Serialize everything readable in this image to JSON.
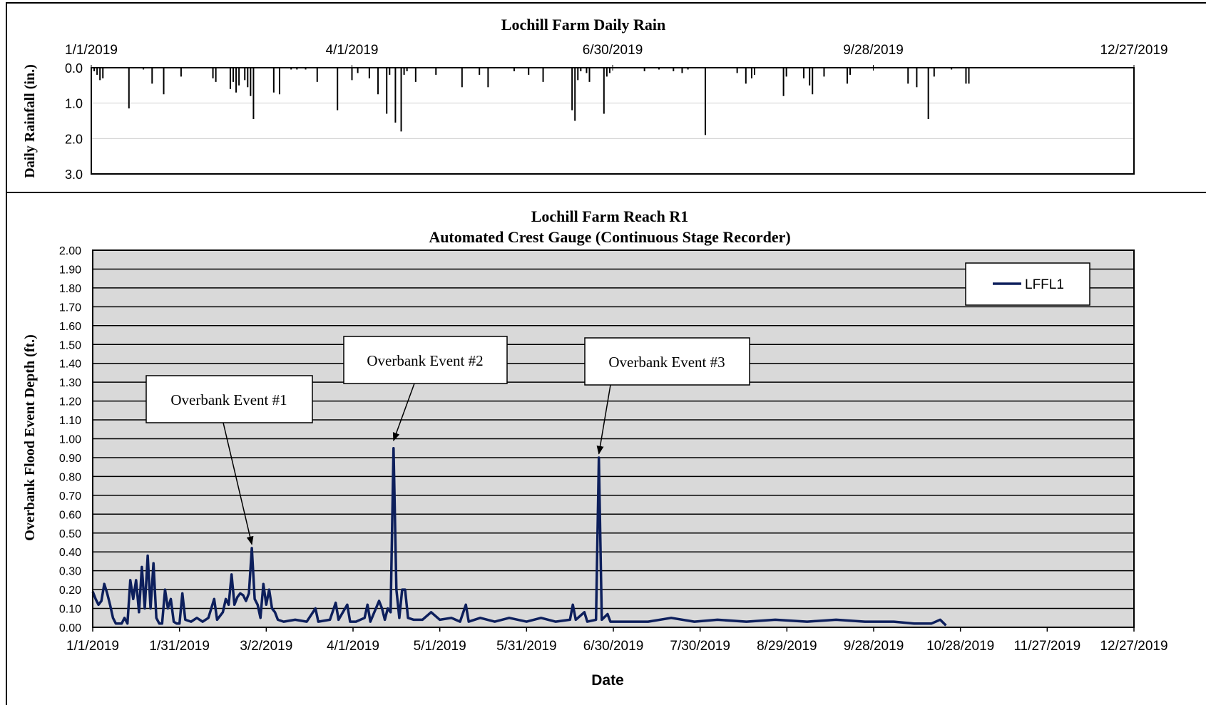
{
  "chart_data": [
    {
      "type": "bar",
      "title": "Lochill Farm Daily Rain",
      "ylabel": "Daily Rainfall (in.)",
      "y_inverted": true,
      "ylim": [
        0,
        3
      ],
      "yticks": [
        "0.0",
        "1.0",
        "2.0",
        "3.0"
      ],
      "xlim": [
        "2019-01-01",
        "2019-12-27"
      ],
      "xtick_dates": [
        "2019-01-01",
        "2019-04-01",
        "2019-06-30",
        "2019-09-28",
        "2019-12-27"
      ],
      "xticks": [
        "1/1/2019",
        "4/1/2019",
        "6/30/2019",
        "9/28/2019",
        "12/27/2019"
      ],
      "grid": true,
      "bar_color": "#000000",
      "points": [
        [
          "2019-01-02",
          0.1
        ],
        [
          "2019-01-03",
          0.2
        ],
        [
          "2019-01-04",
          0.35
        ],
        [
          "2019-01-05",
          0.3
        ],
        [
          "2019-01-14",
          1.15
        ],
        [
          "2019-01-19",
          0.05
        ],
        [
          "2019-01-22",
          0.45
        ],
        [
          "2019-01-26",
          0.75
        ],
        [
          "2019-02-01",
          0.25
        ],
        [
          "2019-02-12",
          0.3
        ],
        [
          "2019-02-13",
          0.4
        ],
        [
          "2019-02-18",
          0.6
        ],
        [
          "2019-02-19",
          0.4
        ],
        [
          "2019-02-20",
          0.7
        ],
        [
          "2019-02-21",
          0.5
        ],
        [
          "2019-02-23",
          0.35
        ],
        [
          "2019-02-24",
          0.55
        ],
        [
          "2019-02-25",
          0.8
        ],
        [
          "2019-02-26",
          1.45
        ],
        [
          "2019-03-05",
          0.7
        ],
        [
          "2019-03-07",
          0.75
        ],
        [
          "2019-03-11",
          0.05
        ],
        [
          "2019-03-13",
          0.05
        ],
        [
          "2019-03-16",
          0.05
        ],
        [
          "2019-03-20",
          0.4
        ],
        [
          "2019-03-27",
          1.2
        ],
        [
          "2019-04-01",
          0.35
        ],
        [
          "2019-04-03",
          0.15
        ],
        [
          "2019-04-07",
          0.3
        ],
        [
          "2019-04-10",
          0.75
        ],
        [
          "2019-04-13",
          1.3
        ],
        [
          "2019-04-14",
          0.2
        ],
        [
          "2019-04-16",
          1.55
        ],
        [
          "2019-04-18",
          1.8
        ],
        [
          "2019-04-19",
          0.2
        ],
        [
          "2019-04-20",
          0.1
        ],
        [
          "2019-04-23",
          0.4
        ],
        [
          "2019-04-30",
          0.2
        ],
        [
          "2019-05-09",
          0.55
        ],
        [
          "2019-05-15",
          0.2
        ],
        [
          "2019-05-18",
          0.55
        ],
        [
          "2019-05-27",
          0.1
        ],
        [
          "2019-06-01",
          0.2
        ],
        [
          "2019-06-06",
          0.4
        ],
        [
          "2019-06-16",
          1.2
        ],
        [
          "2019-06-17",
          1.5
        ],
        [
          "2019-06-18",
          0.35
        ],
        [
          "2019-06-19",
          0.1
        ],
        [
          "2019-06-21",
          0.15
        ],
        [
          "2019-06-22",
          0.4
        ],
        [
          "2019-06-27",
          1.3
        ],
        [
          "2019-06-28",
          0.25
        ],
        [
          "2019-06-29",
          0.15
        ],
        [
          "2019-07-11",
          0.1
        ],
        [
          "2019-07-16",
          0.05
        ],
        [
          "2019-07-21",
          0.1
        ],
        [
          "2019-07-24",
          0.15
        ],
        [
          "2019-07-26",
          0.05
        ],
        [
          "2019-08-01",
          1.9
        ],
        [
          "2019-08-12",
          0.15
        ],
        [
          "2019-08-15",
          0.45
        ],
        [
          "2019-08-17",
          0.3
        ],
        [
          "2019-08-18",
          0.2
        ],
        [
          "2019-08-28",
          0.8
        ],
        [
          "2019-08-29",
          0.25
        ],
        [
          "2019-09-04",
          0.3
        ],
        [
          "2019-09-06",
          0.5
        ],
        [
          "2019-09-07",
          0.75
        ],
        [
          "2019-09-11",
          0.25
        ],
        [
          "2019-09-19",
          0.45
        ],
        [
          "2019-09-20",
          0.2
        ],
        [
          "2019-10-10",
          0.45
        ],
        [
          "2019-10-13",
          0.55
        ],
        [
          "2019-10-17",
          1.45
        ],
        [
          "2019-10-19",
          0.25
        ],
        [
          "2019-10-25",
          0.05
        ],
        [
          "2019-10-30",
          0.45
        ],
        [
          "2019-10-31",
          0.45
        ]
      ]
    },
    {
      "type": "line",
      "title": "Lochill Farm Reach R1",
      "subtitle": "Automated Crest Gauge (Continuous Stage Recorder)",
      "xlabel": "Date",
      "ylabel": "Overbank Flood Event Depth (ft.)",
      "ylim": [
        0,
        2
      ],
      "yticks": [
        "0.00",
        "0.10",
        "0.20",
        "0.30",
        "0.40",
        "0.50",
        "0.60",
        "0.70",
        "0.80",
        "0.90",
        "1.00",
        "1.10",
        "1.20",
        "1.30",
        "1.40",
        "1.50",
        "1.60",
        "1.70",
        "1.80",
        "1.90",
        "2.00"
      ],
      "xlim": [
        "2019-01-01",
        "2019-12-27"
      ],
      "xtick_dates": [
        "2019-01-01",
        "2019-01-31",
        "2019-03-02",
        "2019-04-01",
        "2019-05-01",
        "2019-05-31",
        "2019-06-30",
        "2019-07-30",
        "2019-08-29",
        "2019-09-28",
        "2019-10-28",
        "2019-11-27",
        "2019-12-27"
      ],
      "xticks": [
        "1/1/2019",
        "1/31/2019",
        "3/2/2019",
        "4/1/2019",
        "5/1/2019",
        "5/31/2019",
        "6/30/2019",
        "7/30/2019",
        "8/29/2019",
        "9/28/2019",
        "10/28/2019",
        "11/27/2019",
        "12/27/2019"
      ],
      "grid": true,
      "plot_background": "#d9d9d9",
      "legend_placement": "top-right",
      "series": [
        {
          "name": "LFFL1",
          "color": "#0d1f5c",
          "points": [
            [
              "2019-01-01",
              0.19
            ],
            [
              "2019-01-02",
              0.15
            ],
            [
              "2019-01-03",
              0.12
            ],
            [
              "2019-01-04",
              0.14
            ],
            [
              "2019-01-05",
              0.23
            ],
            [
              "2019-01-06",
              0.18
            ],
            [
              "2019-01-07",
              0.12
            ],
            [
              "2019-01-08",
              0.05
            ],
            [
              "2019-01-09",
              0.02
            ],
            [
              "2019-01-11",
              0.02
            ],
            [
              "2019-01-12",
              0.05
            ],
            [
              "2019-01-13",
              0.02
            ],
            [
              "2019-01-14",
              0.25
            ],
            [
              "2019-01-15",
              0.15
            ],
            [
              "2019-01-16",
              0.25
            ],
            [
              "2019-01-17",
              0.08
            ],
            [
              "2019-01-18",
              0.32
            ],
            [
              "2019-01-19",
              0.1
            ],
            [
              "2019-01-20",
              0.38
            ],
            [
              "2019-01-21",
              0.1
            ],
            [
              "2019-01-22",
              0.34
            ],
            [
              "2019-01-23",
              0.05
            ],
            [
              "2019-01-24",
              0.02
            ],
            [
              "2019-01-25",
              0.02
            ],
            [
              "2019-01-26",
              0.2
            ],
            [
              "2019-01-27",
              0.1
            ],
            [
              "2019-01-28",
              0.15
            ],
            [
              "2019-01-29",
              0.03
            ],
            [
              "2019-01-30",
              0.02
            ],
            [
              "2019-01-31",
              0.02
            ],
            [
              "2019-02-01",
              0.18
            ],
            [
              "2019-02-02",
              0.04
            ],
            [
              "2019-02-04",
              0.03
            ],
            [
              "2019-02-06",
              0.05
            ],
            [
              "2019-02-08",
              0.03
            ],
            [
              "2019-02-10",
              0.05
            ],
            [
              "2019-02-12",
              0.15
            ],
            [
              "2019-02-13",
              0.04
            ],
            [
              "2019-02-15",
              0.08
            ],
            [
              "2019-02-16",
              0.15
            ],
            [
              "2019-02-17",
              0.12
            ],
            [
              "2019-02-18",
              0.28
            ],
            [
              "2019-02-19",
              0.12
            ],
            [
              "2019-02-20",
              0.16
            ],
            [
              "2019-02-21",
              0.18
            ],
            [
              "2019-02-22",
              0.17
            ],
            [
              "2019-02-23",
              0.14
            ],
            [
              "2019-02-24",
              0.18
            ],
            [
              "2019-02-25",
              0.42
            ],
            [
              "2019-02-26",
              0.15
            ],
            [
              "2019-02-27",
              0.12
            ],
            [
              "2019-02-28",
              0.05
            ],
            [
              "2019-03-01",
              0.23
            ],
            [
              "2019-03-02",
              0.12
            ],
            [
              "2019-03-03",
              0.2
            ],
            [
              "2019-03-04",
              0.1
            ],
            [
              "2019-03-05",
              0.08
            ],
            [
              "2019-03-06",
              0.04
            ],
            [
              "2019-03-08",
              0.03
            ],
            [
              "2019-03-12",
              0.04
            ],
            [
              "2019-03-16",
              0.03
            ],
            [
              "2019-03-19",
              0.1
            ],
            [
              "2019-03-20",
              0.03
            ],
            [
              "2019-03-24",
              0.04
            ],
            [
              "2019-03-26",
              0.13
            ],
            [
              "2019-03-27",
              0.04
            ],
            [
              "2019-03-30",
              0.12
            ],
            [
              "2019-03-31",
              0.03
            ],
            [
              "2019-04-02",
              0.03
            ],
            [
              "2019-04-05",
              0.05
            ],
            [
              "2019-04-06",
              0.12
            ],
            [
              "2019-04-07",
              0.03
            ],
            [
              "2019-04-10",
              0.14
            ],
            [
              "2019-04-11",
              0.1
            ],
            [
              "2019-04-12",
              0.04
            ],
            [
              "2019-04-13",
              0.1
            ],
            [
              "2019-04-14",
              0.08
            ],
            [
              "2019-04-15",
              0.95
            ],
            [
              "2019-04-16",
              0.2
            ],
            [
              "2019-04-17",
              0.05
            ],
            [
              "2019-04-18",
              0.2
            ],
            [
              "2019-04-19",
              0.2
            ],
            [
              "2019-04-20",
              0.05
            ],
            [
              "2019-04-22",
              0.04
            ],
            [
              "2019-04-25",
              0.04
            ],
            [
              "2019-04-28",
              0.08
            ],
            [
              "2019-05-01",
              0.04
            ],
            [
              "2019-05-05",
              0.05
            ],
            [
              "2019-05-08",
              0.03
            ],
            [
              "2019-05-10",
              0.12
            ],
            [
              "2019-05-11",
              0.03
            ],
            [
              "2019-05-15",
              0.05
            ],
            [
              "2019-05-20",
              0.03
            ],
            [
              "2019-05-25",
              0.05
            ],
            [
              "2019-05-31",
              0.03
            ],
            [
              "2019-06-05",
              0.05
            ],
            [
              "2019-06-10",
              0.03
            ],
            [
              "2019-06-15",
              0.04
            ],
            [
              "2019-06-16",
              0.12
            ],
            [
              "2019-06-17",
              0.04
            ],
            [
              "2019-06-20",
              0.08
            ],
            [
              "2019-06-21",
              0.03
            ],
            [
              "2019-06-24",
              0.04
            ],
            [
              "2019-06-25",
              0.9
            ],
            [
              "2019-06-26",
              0.04
            ],
            [
              "2019-06-28",
              0.07
            ],
            [
              "2019-06-29",
              0.03
            ],
            [
              "2019-07-05",
              0.03
            ],
            [
              "2019-07-12",
              0.03
            ],
            [
              "2019-07-20",
              0.05
            ],
            [
              "2019-07-28",
              0.03
            ],
            [
              "2019-08-05",
              0.04
            ],
            [
              "2019-08-15",
              0.03
            ],
            [
              "2019-08-25",
              0.04
            ],
            [
              "2019-09-05",
              0.03
            ],
            [
              "2019-09-15",
              0.04
            ],
            [
              "2019-09-25",
              0.03
            ],
            [
              "2019-10-05",
              0.03
            ],
            [
              "2019-10-12",
              0.02
            ],
            [
              "2019-10-18",
              0.02
            ],
            [
              "2019-10-21",
              0.04
            ],
            [
              "2019-10-23",
              0.01
            ]
          ]
        }
      ],
      "annotations": [
        {
          "text": "Overbank Event #1",
          "target": [
            "2019-02-25",
            0.44
          ]
        },
        {
          "text": "Overbank Event #2",
          "target": [
            "2019-04-15",
            0.99
          ]
        },
        {
          "text": "Overbank Event #3",
          "target": [
            "2019-06-25",
            0.92
          ]
        }
      ]
    }
  ]
}
